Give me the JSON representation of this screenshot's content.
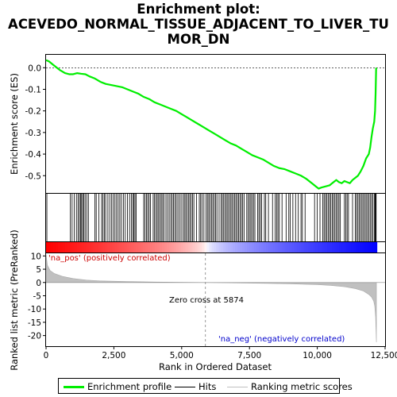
{
  "title_lines": [
    "Enrichment plot:",
    "ACEVEDO_NORMAL_TISSUE_ADJACENT_TO_LIVER_TU",
    "MOR_DN"
  ],
  "colors": {
    "enrichment_line": "#00ee00",
    "hits": "#000000",
    "metric_fill": "#c0c0c0",
    "zero_cross_line": "#999999",
    "pos_label": "#cc0000",
    "neg_label": "#0000cc",
    "pos_bar": "#ff0000",
    "neg_bar": "#0000ff"
  },
  "legend": {
    "enrichment_profile": "Enrichment profile",
    "hits": "Hits",
    "ranking_metric": "Ranking metric scores"
  },
  "annotations": {
    "pos_label": "'na_pos' (positively correlated)",
    "neg_label": "'na_neg' (negatively correlated)",
    "zero_cross": "Zero cross at 5874"
  },
  "chart_data": {
    "type": "line",
    "xlabel": "Rank in Ordered Dataset",
    "ylabel_top": "Enrichment score (ES)",
    "ylabel_bottom": "Ranked list metric (PreRanked)",
    "xlim": [
      0,
      12500
    ],
    "x_ticks": [
      0,
      2500,
      5000,
      7500,
      10000,
      12500
    ],
    "x_tick_labels": [
      "0",
      "2,500",
      "5,000",
      "7,500",
      "10,000",
      "12,500"
    ],
    "es_ylim": [
      -0.58,
      0.06
    ],
    "es_ticks": [
      0.0,
      -0.1,
      -0.2,
      -0.3,
      -0.4,
      -0.5
    ],
    "es_tick_labels": [
      "0.0",
      "-0.1",
      "-0.2",
      "-0.3",
      "-0.4",
      "-0.5"
    ],
    "metric_ylim": [
      -24,
      11
    ],
    "metric_ticks": [
      10,
      5,
      0,
      -5,
      -10,
      -15,
      -20
    ],
    "metric_tick_labels": [
      "10",
      "5",
      "0",
      "-5",
      "-10",
      "-15",
      "-20"
    ],
    "zero_cross": 5874,
    "total_genes": 12200,
    "enrichment_profile": {
      "x": [
        0,
        100,
        300,
        500,
        700,
        850,
        1000,
        1150,
        1300,
        1450,
        1600,
        1800,
        2000,
        2200,
        2400,
        2600,
        2800,
        3000,
        3200,
        3400,
        3600,
        3800,
        4000,
        4200,
        4400,
        4600,
        4800,
        5000,
        5200,
        5400,
        5600,
        5800,
        6000,
        6200,
        6400,
        6600,
        6800,
        7000,
        7200,
        7400,
        7600,
        7800,
        8000,
        8200,
        8400,
        8600,
        8800,
        9000,
        9200,
        9400,
        9600,
        9800,
        9950,
        10050,
        10150,
        10300,
        10450,
        10600,
        10700,
        10800,
        10900,
        11000,
        11100,
        11200,
        11300,
        11400,
        11500,
        11600,
        11700,
        11800,
        11900,
        11950,
        12000,
        12050,
        12100,
        12130,
        12150,
        12170
      ],
      "y": [
        0.035,
        0.03,
        0.01,
        -0.01,
        -0.025,
        -0.03,
        -0.03,
        -0.025,
        -0.028,
        -0.03,
        -0.04,
        -0.05,
        -0.065,
        -0.075,
        -0.08,
        -0.085,
        -0.09,
        -0.1,
        -0.11,
        -0.12,
        -0.135,
        -0.145,
        -0.16,
        -0.17,
        -0.18,
        -0.19,
        -0.2,
        -0.215,
        -0.23,
        -0.245,
        -0.26,
        -0.275,
        -0.29,
        -0.305,
        -0.32,
        -0.335,
        -0.35,
        -0.36,
        -0.375,
        -0.39,
        -0.405,
        -0.415,
        -0.425,
        -0.44,
        -0.455,
        -0.465,
        -0.47,
        -0.48,
        -0.49,
        -0.5,
        -0.515,
        -0.535,
        -0.55,
        -0.56,
        -0.555,
        -0.55,
        -0.545,
        -0.53,
        -0.52,
        -0.53,
        -0.535,
        -0.525,
        -0.53,
        -0.535,
        -0.52,
        -0.51,
        -0.5,
        -0.48,
        -0.455,
        -0.42,
        -0.4,
        -0.37,
        -0.32,
        -0.28,
        -0.25,
        -0.2,
        -0.12,
        0.0
      ]
    },
    "hit_ranks": [
      30,
      890,
      960,
      1040,
      1120,
      1180,
      1230,
      1270,
      1310,
      1350,
      1390,
      1440,
      1500,
      1560,
      1800,
      1850,
      1950,
      2050,
      2100,
      2150,
      2200,
      2280,
      2350,
      2420,
      2480,
      2540,
      2600,
      2660,
      2720,
      2780,
      2850,
      2920,
      3000,
      3080,
      3150,
      3200,
      3240,
      3280,
      3320,
      3600,
      3650,
      3700,
      3750,
      3800,
      3850,
      3950,
      4000,
      4050,
      4100,
      4150,
      4200,
      4250,
      4300,
      4350,
      4420,
      4480,
      4540,
      4600,
      4650,
      4700,
      4750,
      4800,
      4860,
      4920,
      4980,
      5050,
      5100,
      5150,
      5200,
      5250,
      5300,
      5350,
      5400,
      5450,
      5550,
      5650,
      5700,
      5750,
      5820,
      5900,
      5950,
      6000,
      6050,
      6100,
      6150,
      6200,
      6250,
      6300,
      6380,
      6450,
      6500,
      6550,
      6600,
      6650,
      6700,
      6750,
      6800,
      6850,
      6900,
      6950,
      7000,
      7050,
      7100,
      7150,
      7200,
      7250,
      7300,
      7400,
      7450,
      7500,
      7550,
      7600,
      7650,
      7700,
      7800,
      7850,
      7900,
      7950,
      8050,
      8100,
      8200,
      8350,
      8450,
      8500,
      8550,
      8600,
      8700,
      8850,
      8950,
      9000,
      9100,
      9200,
      9300,
      9400,
      9450,
      9550,
      9900,
      10000,
      10100,
      10200,
      10250,
      10300,
      10350,
      10400,
      10450,
      10500,
      10550,
      10600,
      10650,
      10700,
      10750,
      10800,
      10850,
      11000,
      11050,
      11100,
      11150,
      11300,
      11400,
      11450,
      11500,
      11550,
      11600,
      11650,
      11700,
      11750,
      11800,
      11850,
      11900,
      11950,
      12000,
      12050,
      12100,
      12130,
      12150,
      12170
    ],
    "metric_profile": {
      "x": [
        0,
        50,
        150,
        300,
        600,
        1000,
        1500,
        2000,
        3000,
        4000,
        5000,
        5874,
        7000,
        8000,
        9000,
        10000,
        10500,
        11000,
        11400,
        11700,
        11900,
        12000,
        12080,
        12120,
        12150,
        12170,
        12180
      ],
      "y": [
        10.5,
        6.5,
        4.5,
        3.4,
        2.3,
        1.5,
        0.9,
        0.6,
        0.35,
        0.18,
        0.06,
        0.0,
        -0.15,
        -0.3,
        -0.5,
        -0.8,
        -1.1,
        -1.6,
        -2.3,
        -3.2,
        -4.5,
        -5.5,
        -7.0,
        -9.0,
        -13.0,
        -19.0,
        -22.5
      ]
    }
  }
}
